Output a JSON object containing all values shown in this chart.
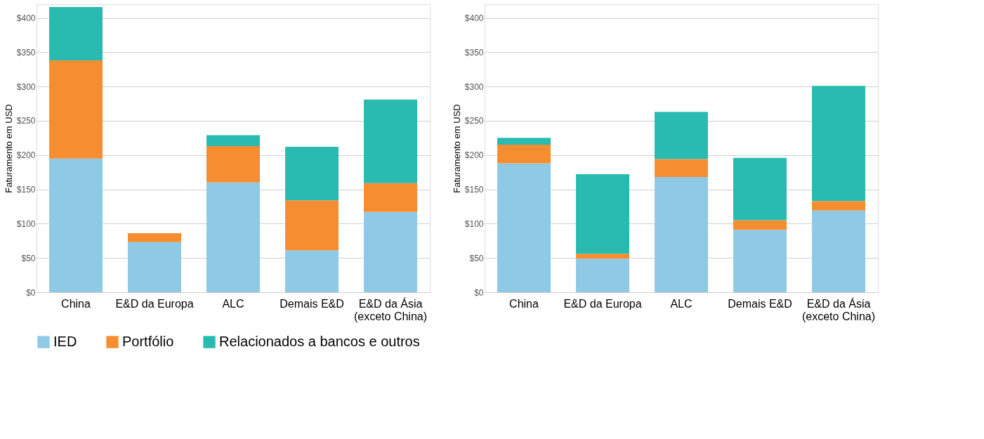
{
  "chart_data": [
    {
      "type": "bar",
      "stacked": true,
      "ylabel": "Faturamento em USD",
      "categories": [
        "China",
        "E&D da Europa",
        "ALC",
        "Demais E&D",
        "E&D da Ásia\n(exceto China)"
      ],
      "series": [
        {
          "name": "IED",
          "color": "#8ecae6",
          "values": [
            195,
            73,
            160,
            61,
            117
          ]
        },
        {
          "name": "Portfólio",
          "color": "#f68e31",
          "values": [
            143,
            13,
            53,
            73,
            42
          ]
        },
        {
          "name": "Relacionados a bancos e outros",
          "color": "#2abbb0",
          "values": [
            78,
            0,
            16,
            78,
            122
          ]
        }
      ],
      "ylim": [
        0,
        420
      ],
      "yticks": [
        {
          "value": 0,
          "label": "$0"
        },
        {
          "value": 50,
          "label": "$50"
        },
        {
          "value": 100,
          "label": "$100"
        },
        {
          "value": 150,
          "label": "$150"
        },
        {
          "value": 200,
          "label": "$200"
        },
        {
          "value": 250,
          "label": "$250"
        },
        {
          "value": 300,
          "label": "$300"
        },
        {
          "value": 350,
          "label": "$350"
        },
        {
          "value": 400,
          "label": "$400"
        }
      ],
      "grid": "y",
      "legend": "bottom"
    },
    {
      "type": "bar",
      "stacked": true,
      "ylabel": "Faturamento em USD",
      "categories": [
        "China",
        "E&D da Europa",
        "ALC",
        "Demais E&D",
        "E&D da Ásia\n(exceto China)"
      ],
      "series": [
        {
          "name": "IED",
          "color": "#8ecae6",
          "values": [
            188,
            49,
            168,
            91,
            119
          ]
        },
        {
          "name": "Portfólio",
          "color": "#f68e31",
          "values": [
            27,
            7,
            26,
            14,
            14
          ]
        },
        {
          "name": "Relacionados a bancos e outros",
          "color": "#2abbb0",
          "values": [
            10,
            116,
            69,
            91,
            168
          ]
        }
      ],
      "ylim": [
        0,
        420
      ],
      "yticks": [
        {
          "value": 0,
          "label": "$0"
        },
        {
          "value": 50,
          "label": "$50"
        },
        {
          "value": 100,
          "label": "$100"
        },
        {
          "value": 150,
          "label": "$150"
        },
        {
          "value": 200,
          "label": "$200"
        },
        {
          "value": 250,
          "label": "$250"
        },
        {
          "value": 300,
          "label": "$300"
        },
        {
          "value": 350,
          "label": "$350"
        },
        {
          "value": 400,
          "label": "$400"
        }
      ],
      "grid": "y",
      "legend": "bottom"
    }
  ]
}
